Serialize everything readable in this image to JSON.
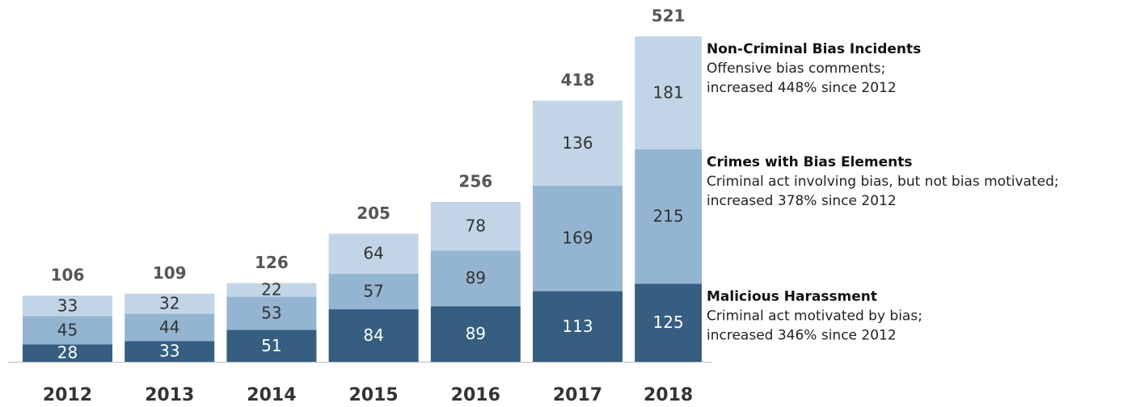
{
  "chart_data": {
    "type": "stacked_bar",
    "categories": [
      "2012",
      "2013",
      "2014",
      "2015",
      "2016",
      "2017",
      "2018"
    ],
    "series": [
      {
        "name": "Malicious Harassment",
        "color": "#355e80",
        "label_color": "#ffffff",
        "description": [
          "Criminal act motivated by bias;",
          "increased 346% since 2012"
        ],
        "values": [
          28,
          33,
          51,
          84,
          89,
          113,
          125
        ]
      },
      {
        "name": "Crimes with Bias Elements",
        "color": "#94b5d1",
        "label_color": "#333333",
        "description": [
          "Criminal act involving bias, but not bias motivated;",
          "increased 378% since 2012"
        ],
        "values": [
          45,
          44,
          53,
          57,
          89,
          169,
          215
        ]
      },
      {
        "name": "Non-Criminal Bias Incidents",
        "color": "#c2d5e7",
        "label_color": "#333333",
        "description": [
          "Offensive bias comments;",
          "increased 448% since 2012"
        ],
        "values": [
          33,
          32,
          22,
          64,
          78,
          136,
          181
        ]
      }
    ],
    "totals": [
      106,
      109,
      126,
      205,
      256,
      418,
      521
    ]
  }
}
